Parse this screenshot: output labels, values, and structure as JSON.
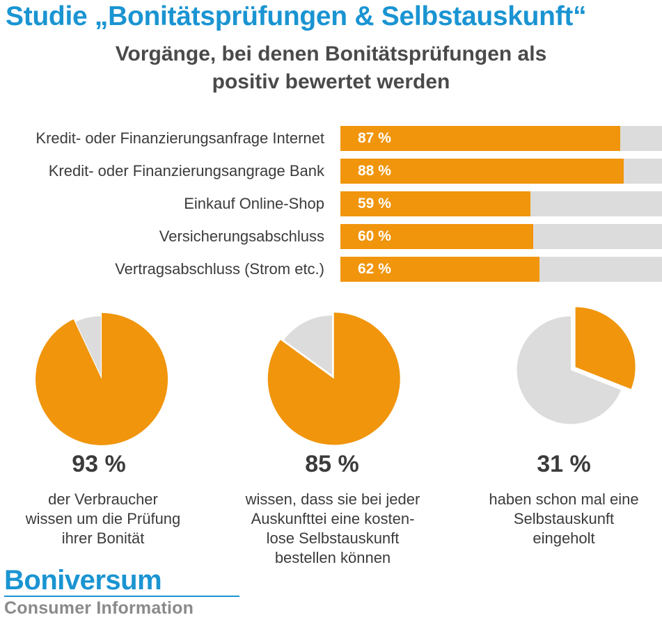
{
  "header": {
    "title": "Studie „Bonitätsprüfungen & Selbstauskunft“",
    "subtitle_lines": [
      "Vorgänge, bei denen Bonitätsprüfungen als",
      "positiv bewertet werden"
    ]
  },
  "chart_data": [
    {
      "type": "bar",
      "orientation": "horizontal",
      "categories": [
        "Kredit- oder Finanzierungsanfrage Internet",
        "Kredit- oder Finanzierungsangrage Bank",
        "Einkauf Online-Shop",
        "Versicherungsabschluss",
        "Vertragsabschluss (Strom etc.)"
      ],
      "values": [
        87,
        88,
        59,
        60,
        62
      ],
      "value_labels": [
        "87 %",
        "88 %",
        "59 %",
        "60 %",
        "62 %"
      ],
      "xlim": [
        0,
        100
      ],
      "colors": {
        "fill": "#f0950c",
        "track": "#dcdcdc"
      }
    },
    {
      "type": "pie",
      "values": [
        93,
        7
      ],
      "value_label": "93 %",
      "caption_lines": [
        "der Verbraucher",
        "wissen um die Prüfung",
        "ihrer Bonität"
      ],
      "colors": [
        "#f0950c",
        "#dcdcdc"
      ],
      "exploded": "orange"
    },
    {
      "type": "pie",
      "values": [
        85,
        15
      ],
      "value_label": "85 %",
      "caption_lines": [
        "wissen, dass sie bei jeder",
        "Auskunfttei eine kosten-",
        "lose Selbstauskunft",
        "bestellen können"
      ],
      "colors": [
        "#f0950c",
        "#dcdcdc"
      ],
      "exploded": "orange"
    },
    {
      "type": "pie",
      "values": [
        31,
        69
      ],
      "value_label": "31 %",
      "caption_lines": [
        "haben schon mal eine",
        "Selbstauskunft",
        "eingeholt"
      ],
      "colors": [
        "#f0950c",
        "#dcdcdc"
      ],
      "exploded": "orange"
    }
  ],
  "logo": {
    "brand": "Boniversum",
    "tagline": "Consumer Information"
  },
  "colors": {
    "title_blue": "#1a94d2",
    "accent_orange": "#f0950c",
    "neutral_gray": "#dcdcdc",
    "text_dark": "#3b3b3b"
  }
}
